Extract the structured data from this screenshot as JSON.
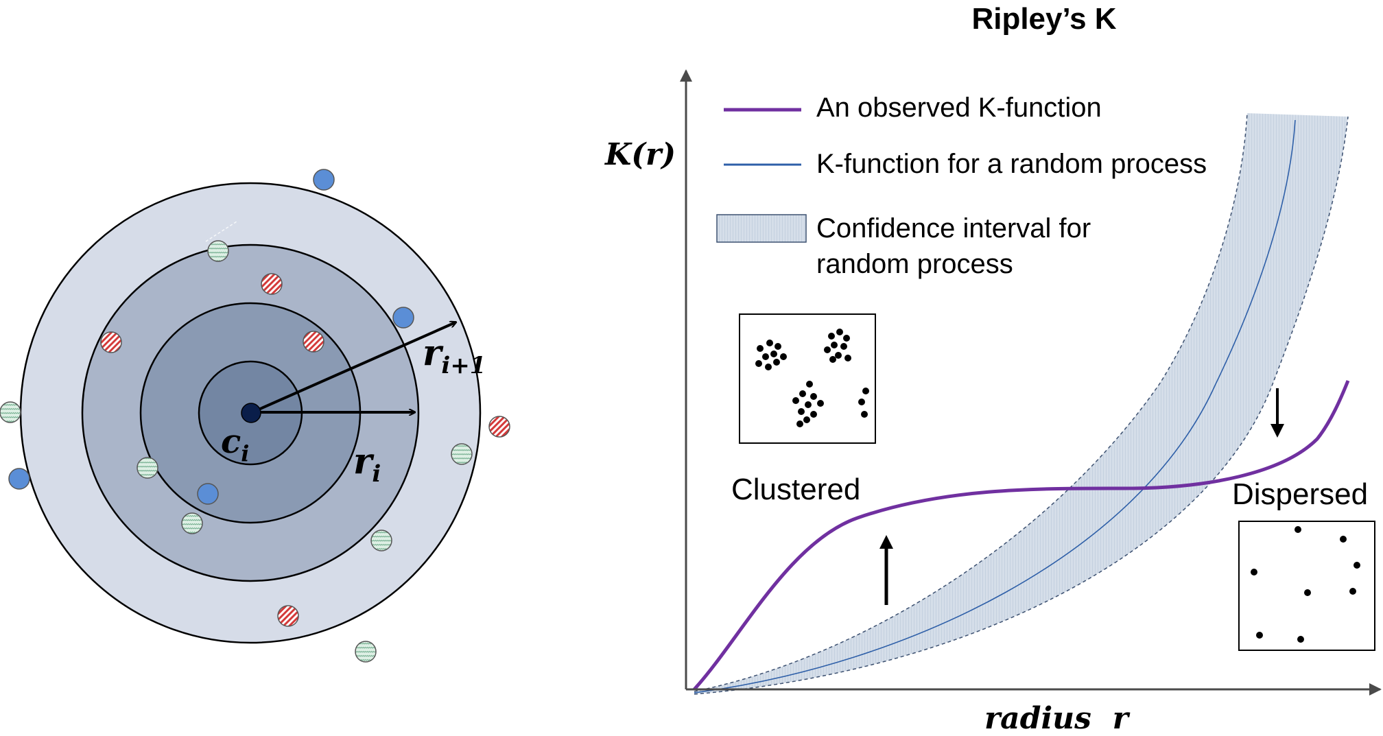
{
  "left_diagram": {
    "center_label": "c",
    "center_sub": "i",
    "radius_label": "r",
    "radius_sub": "i",
    "outer_radius_label": "r",
    "outer_radius_sub": "i+1"
  },
  "chart": {
    "title": "Ripley’s K",
    "y_axis_label": "K(r)",
    "x_axis_label": "radius  r",
    "legend": {
      "observed": "An observed K-function",
      "random": "K-function for a random process",
      "ci_line1": "Confidence interval for",
      "ci_line2": "random process"
    },
    "labels": {
      "clustered": "Clustered",
      "dispersed": "Dispersed"
    },
    "colors": {
      "observed": "#7030A0",
      "random": "#2E5FA8",
      "band": "#C9D3E0"
    }
  }
}
